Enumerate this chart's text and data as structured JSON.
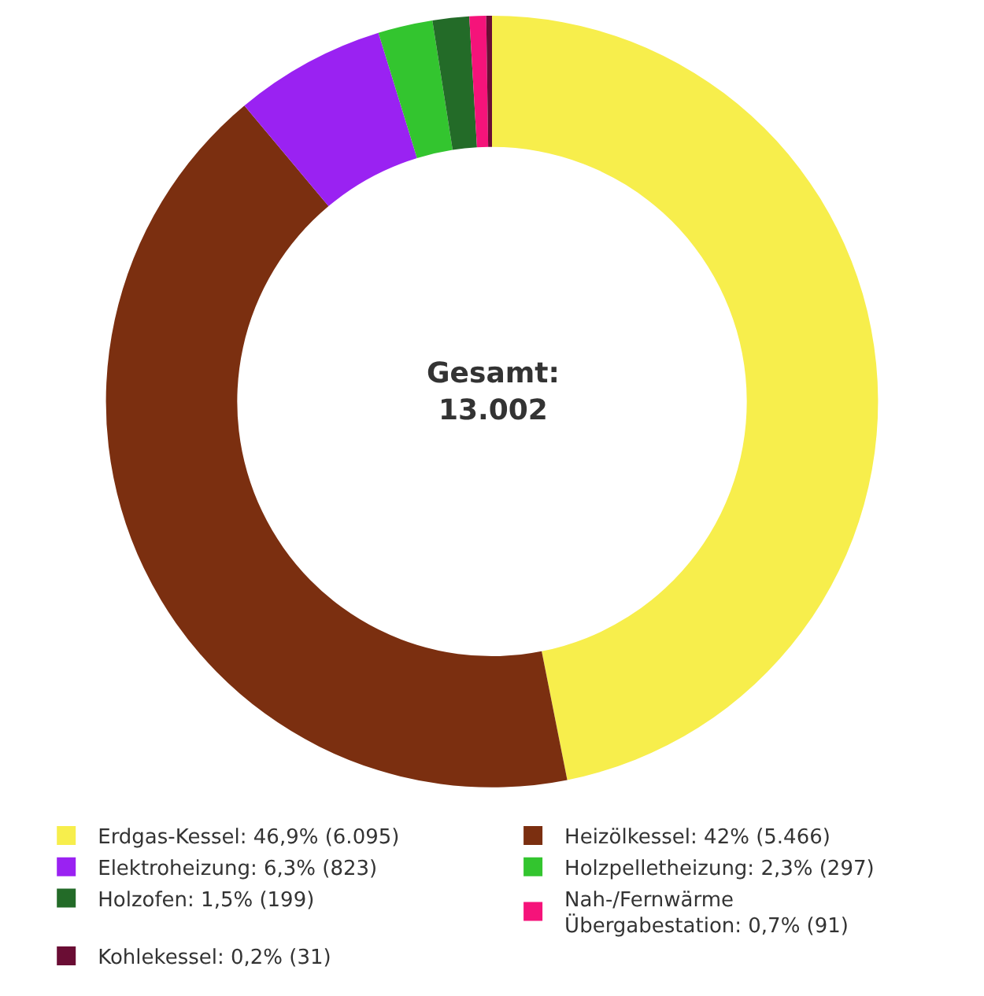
{
  "chart_data": {
    "type": "donut",
    "categories": [
      "Erdgas-Kessel: 46,9% (6.095)",
      "Heizölkessel: 42% (5.466)",
      "Elektroheizung: 6,3% (823)",
      "Holzpelletheizung: 2,3% (297)",
      "Holzofen: 1,5% (199)",
      "Nah-/Fernwärme\nÜbergabestation: 0,7% (91)",
      "Kohlekessel: 0,2% (31)"
    ],
    "values": [
      6095,
      5466,
      823,
      297,
      199,
      91,
      31
    ],
    "colors": [
      "#f7ee4c",
      "#7b2f10",
      "#9a22f2",
      "#33c52f",
      "#236b28",
      "#f5137a",
      "#6a0d34"
    ],
    "annotations": [
      "Gesamt:\n13.002"
    ],
    "legend": "bottom"
  }
}
